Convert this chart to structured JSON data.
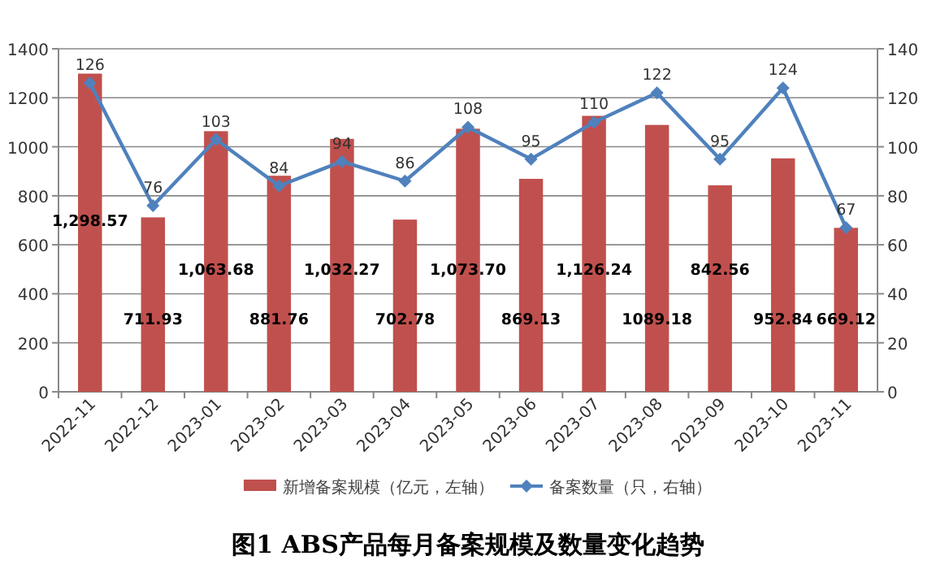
{
  "chart_data": {
    "type": "bar",
    "title": "图1  ABS产品每月备案规模及数量变化趋势",
    "categories": [
      "2022-11",
      "2022-12",
      "2023-01",
      "2023-02",
      "2023-03",
      "2023-04",
      "2023-05",
      "2023-06",
      "2023-07",
      "2023-08",
      "2023-09",
      "2023-10",
      "2023-11"
    ],
    "series": [
      {
        "name": "新增备案规模（亿元，左轴）",
        "color": "#c0504d",
        "values": [
          1298.57,
          711.93,
          1063.68,
          881.76,
          1032.27,
          702.78,
          1073.7,
          869.13,
          1126.24,
          1089.18,
          842.56,
          952.84,
          669.12
        ],
        "value_labels": [
          "1,298.57",
          "711.93",
          "1,063.68",
          "881.76",
          "1,032.27",
          "702.78",
          "1,073.70",
          "869.13",
          "1,126.24",
          "1089.18",
          "842.56",
          "952.84",
          "669.12"
        ]
      },
      {
        "name": "备案数量（只，右轴）",
        "type": "line",
        "axis": "y2",
        "color": "#4f81bd",
        "marker": "diamond",
        "values": [
          126,
          76,
          103,
          84,
          94,
          86,
          108,
          95,
          110,
          122,
          95,
          124,
          67
        ],
        "value_labels": [
          "126",
          "76",
          "103",
          "84",
          "94",
          "86",
          "108",
          "95",
          "110",
          "122",
          "95",
          "124",
          "67"
        ]
      }
    ],
    "ylim": [
      0,
      1400
    ],
    "yticks": [
      0,
      200,
      400,
      600,
      800,
      1000,
      1200,
      1400
    ],
    "y2lim": [
      0,
      140
    ],
    "y2ticks": [
      0,
      20,
      40,
      60,
      80,
      100,
      120,
      140
    ],
    "grid": "y",
    "legend": "bottom"
  }
}
